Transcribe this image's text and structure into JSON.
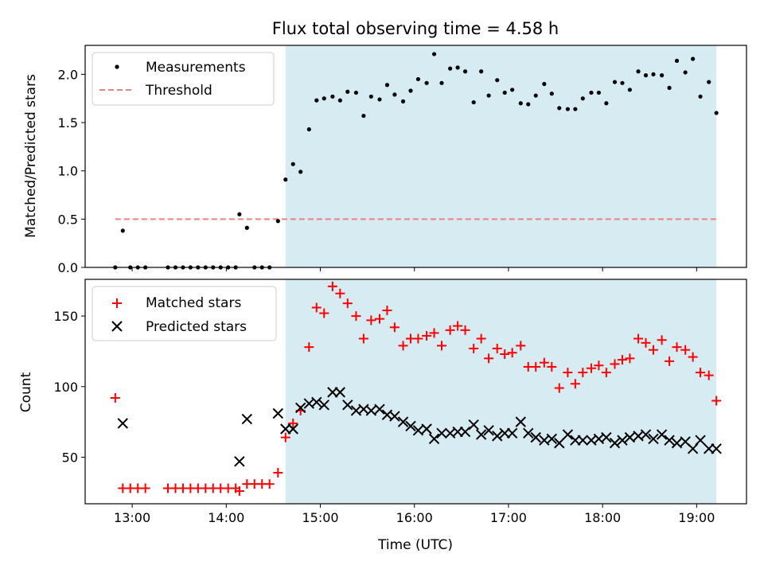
{
  "chart_data": [
    {
      "type": "scatter",
      "title": "Flux total observing time = 4.58 h",
      "xlabel": "",
      "ylabel": "Matched/Predicted stars",
      "xlim": [
        12.5,
        19.53
      ],
      "ylim": [
        0.0,
        2.3
      ],
      "x_ticks": [
        "13:00",
        "14:00",
        "15:00",
        "16:00",
        "17:00",
        "18:00",
        "19:00"
      ],
      "y_ticks": [
        "0.0",
        "0.5",
        "1.0",
        "1.5",
        "2.0"
      ],
      "shaded_region": {
        "x_start": 14.63,
        "x_end": 19.21,
        "color": "#add8e6"
      },
      "threshold": {
        "value": 0.5,
        "x_start": 12.82,
        "x_end": 19.21,
        "color": "#f08080"
      },
      "legend": {
        "position": "top-left",
        "entries": [
          "Measurements",
          "Threshold"
        ]
      },
      "series": [
        {
          "name": "Measurements",
          "marker": "dot",
          "color": "#000000",
          "points": [
            [
              12.82,
              0.0
            ],
            [
              12.9,
              0.38
            ],
            [
              12.98,
              0.0
            ],
            [
              13.06,
              0.0
            ],
            [
              13.14,
              0.0
            ],
            [
              13.38,
              0.0
            ],
            [
              13.46,
              0.0
            ],
            [
              13.54,
              0.0
            ],
            [
              13.62,
              0.0
            ],
            [
              13.7,
              0.0
            ],
            [
              13.78,
              0.0
            ],
            [
              13.86,
              0.0
            ],
            [
              13.94,
              0.0
            ],
            [
              14.02,
              0.0
            ],
            [
              14.1,
              0.0
            ],
            [
              14.14,
              0.55
            ],
            [
              14.22,
              0.41
            ],
            [
              14.3,
              0.0
            ],
            [
              14.38,
              0.0
            ],
            [
              14.46,
              0.0
            ],
            [
              14.55,
              0.48
            ],
            [
              14.63,
              0.91
            ],
            [
              14.71,
              1.07
            ],
            [
              14.79,
              0.99
            ],
            [
              14.88,
              1.43
            ],
            [
              14.96,
              1.73
            ],
            [
              15.04,
              1.75
            ],
            [
              15.13,
              1.77
            ],
            [
              15.21,
              1.73
            ],
            [
              15.29,
              1.82
            ],
            [
              15.38,
              1.81
            ],
            [
              15.46,
              1.57
            ],
            [
              15.54,
              1.77
            ],
            [
              15.63,
              1.74
            ],
            [
              15.71,
              1.89
            ],
            [
              15.79,
              1.79
            ],
            [
              15.88,
              1.72
            ],
            [
              15.96,
              1.83
            ],
            [
              16.04,
              1.95
            ],
            [
              16.13,
              1.91
            ],
            [
              16.21,
              2.21
            ],
            [
              16.29,
              1.91
            ],
            [
              16.38,
              2.06
            ],
            [
              16.46,
              2.07
            ],
            [
              16.54,
              2.03
            ],
            [
              16.63,
              1.71
            ],
            [
              16.71,
              2.03
            ],
            [
              16.79,
              1.78
            ],
            [
              16.88,
              1.94
            ],
            [
              16.96,
              1.81
            ],
            [
              17.04,
              1.84
            ],
            [
              17.13,
              1.7
            ],
            [
              17.21,
              1.69
            ],
            [
              17.29,
              1.78
            ],
            [
              17.38,
              1.9
            ],
            [
              17.46,
              1.8
            ],
            [
              17.54,
              1.65
            ],
            [
              17.63,
              1.64
            ],
            [
              17.71,
              1.64
            ],
            [
              17.79,
              1.75
            ],
            [
              17.88,
              1.81
            ],
            [
              17.96,
              1.81
            ],
            [
              18.04,
              1.7
            ],
            [
              18.13,
              1.92
            ],
            [
              18.21,
              1.91
            ],
            [
              18.29,
              1.84
            ],
            [
              18.38,
              2.03
            ],
            [
              18.46,
              1.99
            ],
            [
              18.54,
              2.0
            ],
            [
              18.63,
              1.99
            ],
            [
              18.71,
              1.86
            ],
            [
              18.79,
              2.14
            ],
            [
              18.88,
              2.02
            ],
            [
              18.96,
              2.16
            ],
            [
              19.04,
              1.77
            ],
            [
              19.13,
              1.92
            ],
            [
              19.21,
              1.6
            ]
          ]
        }
      ]
    },
    {
      "type": "scatter",
      "title": "",
      "xlabel": "Time (UTC)",
      "ylabel": "Count",
      "xlim": [
        12.5,
        19.53
      ],
      "ylim": [
        17,
        176
      ],
      "x_ticks": [
        "13:00",
        "14:00",
        "15:00",
        "16:00",
        "17:00",
        "18:00",
        "19:00"
      ],
      "y_ticks": [
        "50",
        "100",
        "150"
      ],
      "shaded_region": {
        "x_start": 14.63,
        "x_end": 19.21,
        "color": "#add8e6"
      },
      "legend": {
        "position": "top-left",
        "entries": [
          "Matched stars",
          "Predicted stars"
        ]
      },
      "series": [
        {
          "name": "Matched stars",
          "marker": "plus",
          "color": "#ff0000",
          "points": [
            [
              12.82,
              92
            ],
            [
              12.9,
              28
            ],
            [
              12.98,
              28
            ],
            [
              13.06,
              28
            ],
            [
              13.14,
              28
            ],
            [
              13.38,
              28
            ],
            [
              13.46,
              28
            ],
            [
              13.54,
              28
            ],
            [
              13.62,
              28
            ],
            [
              13.7,
              28
            ],
            [
              13.78,
              28
            ],
            [
              13.86,
              28
            ],
            [
              13.94,
              28
            ],
            [
              14.02,
              28
            ],
            [
              14.1,
              28
            ],
            [
              14.14,
              26
            ],
            [
              14.22,
              31
            ],
            [
              14.3,
              31
            ],
            [
              14.38,
              31
            ],
            [
              14.46,
              31
            ],
            [
              14.55,
              39
            ],
            [
              14.63,
              64
            ],
            [
              14.71,
              74
            ],
            [
              14.79,
              83
            ],
            [
              14.88,
              128
            ],
            [
              14.96,
              156
            ],
            [
              15.04,
              152
            ],
            [
              15.13,
              171
            ],
            [
              15.21,
              166
            ],
            [
              15.29,
              159
            ],
            [
              15.38,
              150
            ],
            [
              15.46,
              134
            ],
            [
              15.54,
              147
            ],
            [
              15.63,
              148
            ],
            [
              15.71,
              154
            ],
            [
              15.79,
              142
            ],
            [
              15.88,
              129
            ],
            [
              15.96,
              134
            ],
            [
              16.04,
              134
            ],
            [
              16.13,
              136
            ],
            [
              16.21,
              138
            ],
            [
              16.29,
              129
            ],
            [
              16.38,
              140
            ],
            [
              16.46,
              143
            ],
            [
              16.54,
              140
            ],
            [
              16.63,
              127
            ],
            [
              16.71,
              134
            ],
            [
              16.79,
              120
            ],
            [
              16.88,
              127
            ],
            [
              16.96,
              123
            ],
            [
              17.04,
              124
            ],
            [
              17.13,
              129
            ],
            [
              17.21,
              114
            ],
            [
              17.29,
              114
            ],
            [
              17.38,
              117
            ],
            [
              17.46,
              114
            ],
            [
              17.54,
              99
            ],
            [
              17.63,
              110
            ],
            [
              17.71,
              102
            ],
            [
              17.79,
              110
            ],
            [
              17.88,
              113
            ],
            [
              17.96,
              115
            ],
            [
              18.04,
              110
            ],
            [
              18.13,
              116
            ],
            [
              18.21,
              119
            ],
            [
              18.29,
              120
            ],
            [
              18.38,
              134
            ],
            [
              18.46,
              131
            ],
            [
              18.54,
              126
            ],
            [
              18.63,
              133
            ],
            [
              18.71,
              118
            ],
            [
              18.79,
              128
            ],
            [
              18.88,
              126
            ],
            [
              18.96,
              121
            ],
            [
              19.04,
              110
            ],
            [
              19.13,
              108
            ],
            [
              19.21,
              90
            ]
          ]
        },
        {
          "name": "Predicted stars",
          "marker": "x",
          "color": "#000000",
          "points": [
            [
              12.9,
              74
            ],
            [
              14.14,
              47
            ],
            [
              14.22,
              77
            ],
            [
              14.55,
              81
            ],
            [
              14.63,
              70
            ],
            [
              14.71,
              70
            ],
            [
              14.79,
              85
            ],
            [
              14.88,
              88
            ],
            [
              14.96,
              89
            ],
            [
              15.04,
              87
            ],
            [
              15.13,
              96
            ],
            [
              15.21,
              96
            ],
            [
              15.29,
              87
            ],
            [
              15.38,
              83
            ],
            [
              15.46,
              84
            ],
            [
              15.54,
              83
            ],
            [
              15.63,
              84
            ],
            [
              15.71,
              80
            ],
            [
              15.79,
              79
            ],
            [
              15.88,
              75
            ],
            [
              15.96,
              72
            ],
            [
              16.04,
              69
            ],
            [
              16.13,
              70
            ],
            [
              16.21,
              63
            ],
            [
              16.29,
              67
            ],
            [
              16.38,
              67
            ],
            [
              16.46,
              68
            ],
            [
              16.54,
              68
            ],
            [
              16.63,
              73
            ],
            [
              16.71,
              66
            ],
            [
              16.79,
              69
            ],
            [
              16.88,
              65
            ],
            [
              16.96,
              67
            ],
            [
              17.04,
              67
            ],
            [
              17.13,
              75
            ],
            [
              17.21,
              67
            ],
            [
              17.29,
              64
            ],
            [
              17.38,
              62
            ],
            [
              17.46,
              63
            ],
            [
              17.54,
              60
            ],
            [
              17.63,
              66
            ],
            [
              17.71,
              62
            ],
            [
              17.79,
              62
            ],
            [
              17.88,
              62
            ],
            [
              17.96,
              63
            ],
            [
              18.04,
              64
            ],
            [
              18.13,
              60
            ],
            [
              18.21,
              62
            ],
            [
              18.29,
              64
            ],
            [
              18.38,
              65
            ],
            [
              18.46,
              66
            ],
            [
              18.54,
              63
            ],
            [
              18.63,
              66
            ],
            [
              18.71,
              62
            ],
            [
              18.79,
              60
            ],
            [
              18.88,
              61
            ],
            [
              18.96,
              56
            ],
            [
              19.04,
              62
            ],
            [
              19.13,
              56
            ],
            [
              19.21,
              56
            ]
          ]
        }
      ]
    }
  ]
}
